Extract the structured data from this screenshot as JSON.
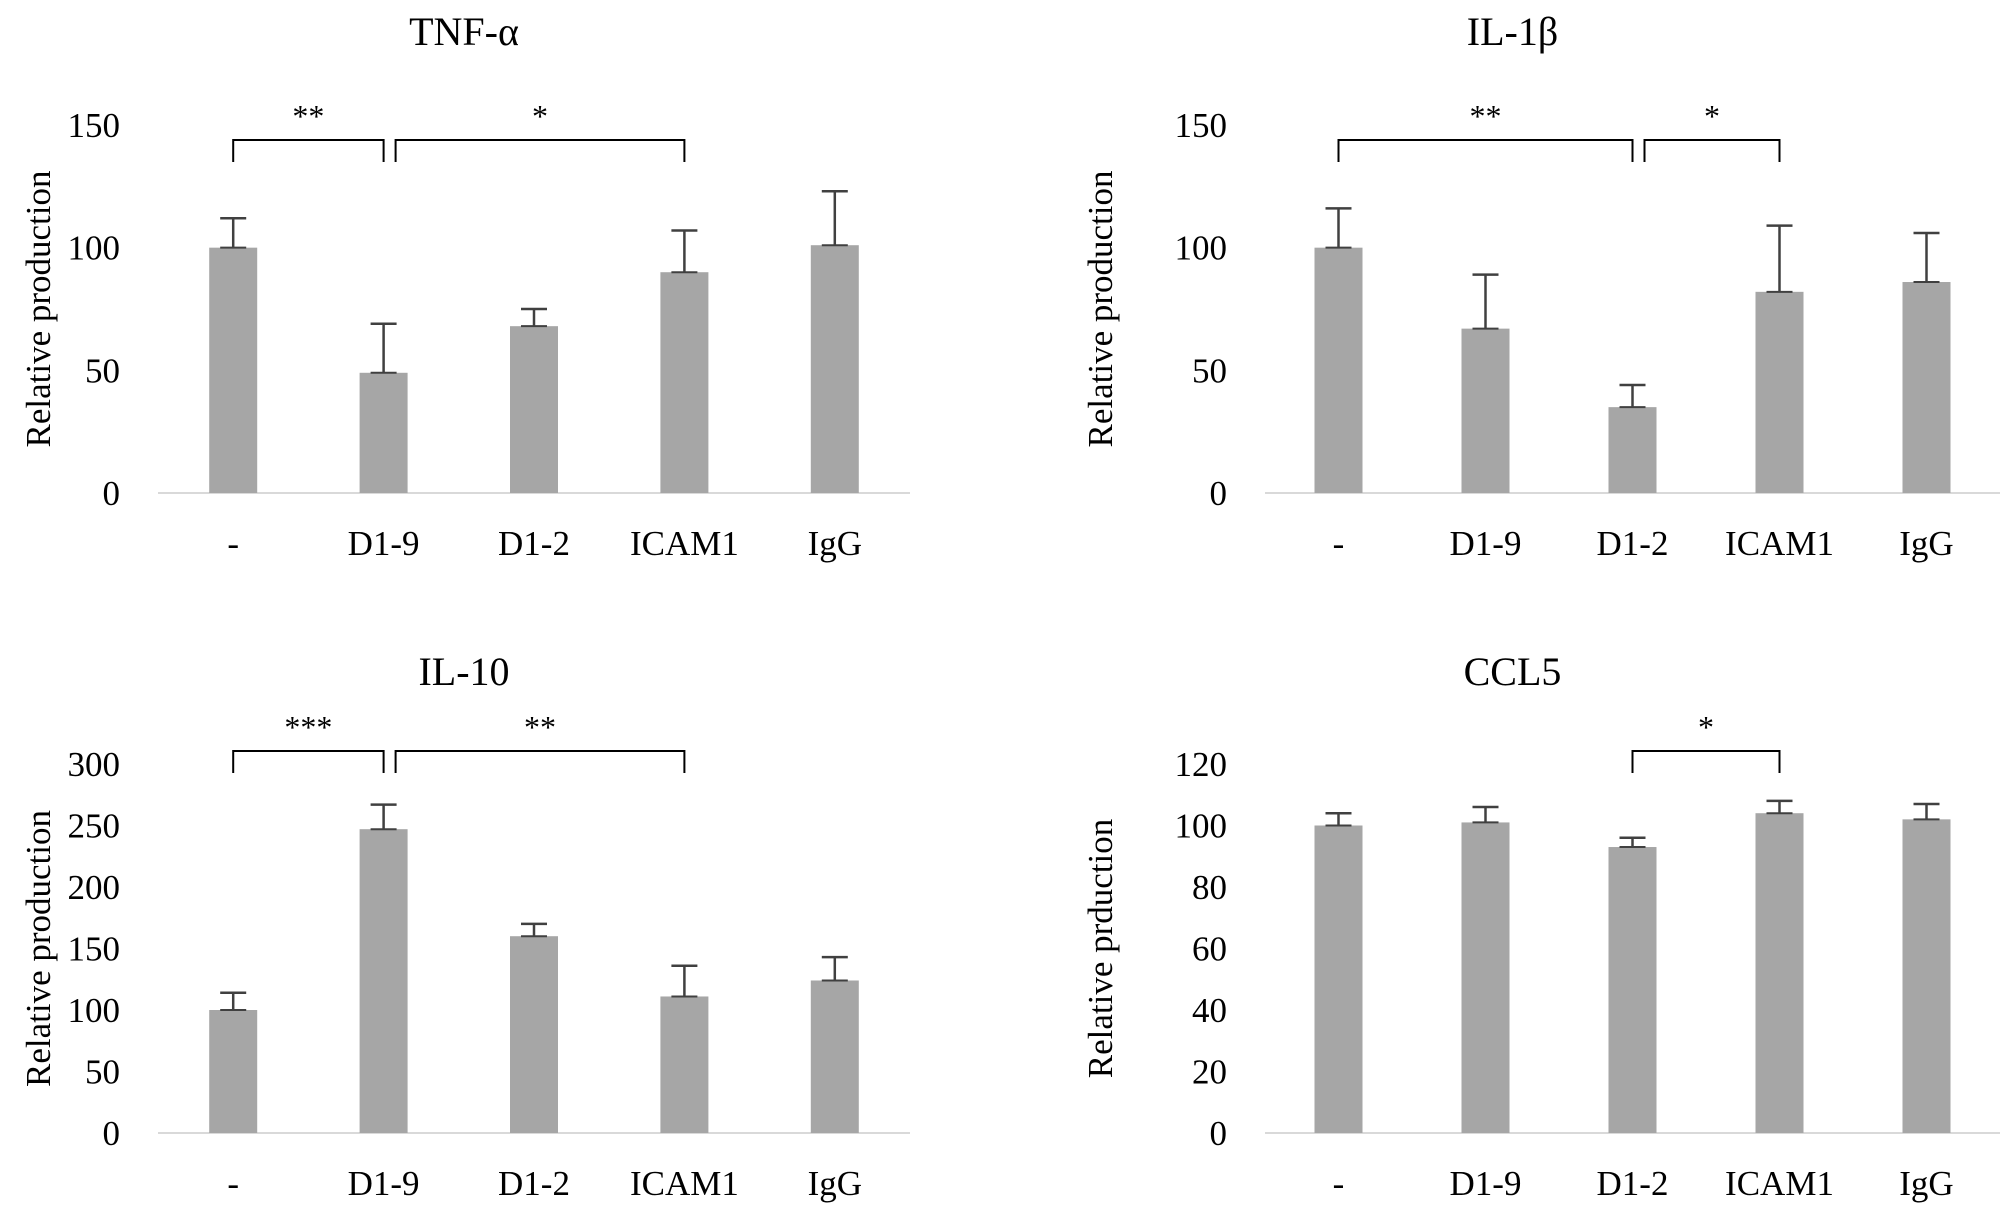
{
  "figure": {
    "bar_color": "#a6a6a6",
    "axis_color": "#d9d9d9",
    "error_color": "#404040",
    "bracket_color": "#000000"
  },
  "chart_data": [
    {
      "type": "bar",
      "title": "TNF-α",
      "ylabel": "Relative production",
      "categories": [
        "-",
        "D1-9",
        "D1-2",
        "ICAM1",
        "IgG"
      ],
      "values": [
        100,
        49,
        68,
        90,
        101
      ],
      "errors": [
        12,
        20,
        7,
        17,
        22
      ],
      "ylim": [
        0,
        150
      ],
      "yticks": [
        "0",
        "50",
        "100",
        "150"
      ],
      "significance": [
        {
          "from": 0,
          "to": 1,
          "label": "**"
        },
        {
          "from": 1,
          "to": 3,
          "label": "*"
        }
      ]
    },
    {
      "type": "bar",
      "title": "IL-1β",
      "ylabel": "Relative production",
      "categories": [
        "-",
        "D1-9",
        "D1-2",
        "ICAM1",
        "IgG"
      ],
      "values": [
        100,
        67,
        35,
        82,
        86
      ],
      "errors": [
        16,
        22,
        9,
        27,
        20
      ],
      "ylim": [
        0,
        150
      ],
      "yticks": [
        "0",
        "50",
        "100",
        "150"
      ],
      "significance": [
        {
          "from": 0,
          "to": 2,
          "label": "**"
        },
        {
          "from": 2,
          "to": 3,
          "label": "*"
        }
      ]
    },
    {
      "type": "bar",
      "title": "IL-10",
      "ylabel": "Relative production",
      "categories": [
        "-",
        "D1-9",
        "D1-2",
        "ICAM1",
        "IgG"
      ],
      "values": [
        100,
        247,
        160,
        111,
        124
      ],
      "errors": [
        14,
        20,
        10,
        25,
        19
      ],
      "ylim": [
        0,
        300
      ],
      "yticks": [
        "0",
        "50",
        "100",
        "150",
        "200",
        "250",
        "300"
      ],
      "significance": [
        {
          "from": 0,
          "to": 1,
          "label": "***"
        },
        {
          "from": 1,
          "to": 3,
          "label": "**"
        }
      ]
    },
    {
      "type": "bar",
      "title": "CCL5",
      "ylabel": "Relative prduction",
      "categories": [
        "-",
        "D1-9",
        "D1-2",
        "ICAM1",
        "IgG"
      ],
      "values": [
        100,
        101,
        93,
        104,
        102
      ],
      "errors": [
        4,
        5,
        3,
        4,
        5
      ],
      "ylim": [
        0,
        120
      ],
      "yticks": [
        "0",
        "20",
        "40",
        "60",
        "80",
        "100",
        "120"
      ],
      "significance": [
        {
          "from": 2,
          "to": 3,
          "label": "*"
        }
      ]
    }
  ]
}
